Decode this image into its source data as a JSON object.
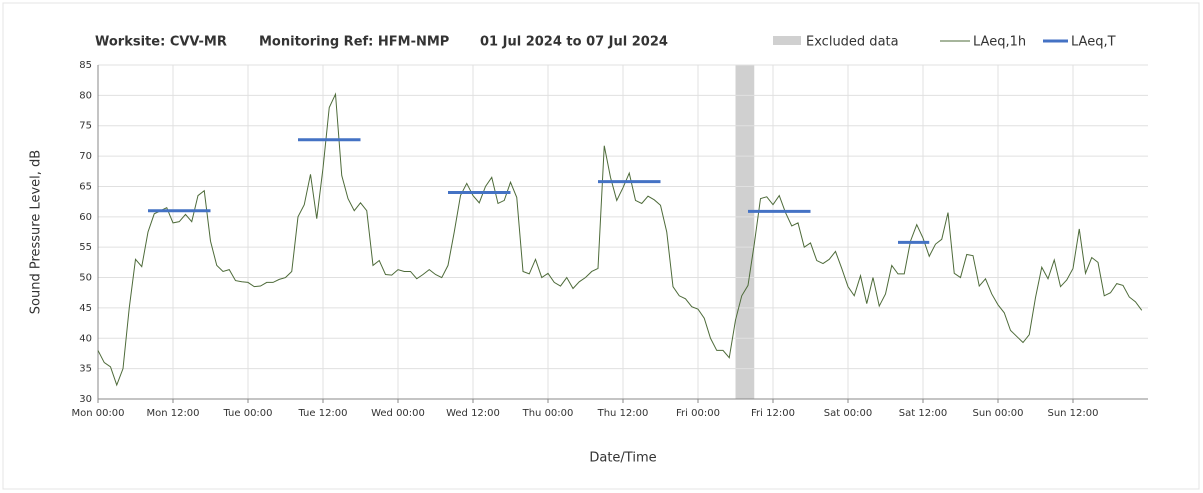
{
  "chart_data": {
    "type": "line",
    "header": [
      "Worksite: CVV-MR",
      "Monitoring Ref: HFM-NMP",
      "01 Jul 2024 to 07 Jul 2024"
    ],
    "xlabel": "Date/Time",
    "ylabel": "Sound Pressure Level, dB",
    "xlim": [
      0,
      168
    ],
    "ylim": [
      30,
      85
    ],
    "yticks": [
      30,
      35,
      40,
      45,
      50,
      55,
      60,
      65,
      70,
      75,
      80,
      85
    ],
    "xticks": [
      {
        "value": 0,
        "label": "Mon 00:00"
      },
      {
        "value": 12,
        "label": "Mon 12:00"
      },
      {
        "value": 24,
        "label": "Tue 00:00"
      },
      {
        "value": 36,
        "label": "Tue 12:00"
      },
      {
        "value": 48,
        "label": "Wed 00:00"
      },
      {
        "value": 60,
        "label": "Wed 12:00"
      },
      {
        "value": 72,
        "label": "Thu 00:00"
      },
      {
        "value": 84,
        "label": "Thu 12:00"
      },
      {
        "value": 96,
        "label": "Fri 00:00"
      },
      {
        "value": 108,
        "label": "Fri 12:00"
      },
      {
        "value": 120,
        "label": "Sat 00:00"
      },
      {
        "value": 132,
        "label": "Sat 12:00"
      },
      {
        "value": 144,
        "label": "Sun 00:00"
      },
      {
        "value": 156,
        "label": "Sun 12:00"
      }
    ],
    "grid": true,
    "excluded": {
      "name": "Excluded data",
      "color": "#d0d0d0",
      "x": [
        102,
        105
      ]
    },
    "series": [
      {
        "name": "LAeq,1h",
        "color": "#4e6b3a",
        "x": [
          0,
          1,
          2,
          3,
          4,
          5,
          6,
          7,
          8,
          9,
          10,
          11,
          12,
          13,
          14,
          15,
          16,
          17,
          18,
          19,
          20,
          21,
          22,
          23,
          24,
          25,
          26,
          27,
          28,
          29,
          30,
          31,
          32,
          33,
          34,
          35,
          36,
          37,
          38,
          39,
          40,
          41,
          42,
          43,
          44,
          45,
          46,
          47,
          48,
          49,
          50,
          51,
          52,
          53,
          54,
          55,
          56,
          57,
          58,
          59,
          60,
          61,
          62,
          63,
          64,
          65,
          66,
          67,
          68,
          69,
          70,
          71,
          72,
          73,
          74,
          75,
          76,
          77,
          78,
          79,
          80,
          81,
          82,
          83,
          84,
          85,
          86,
          87,
          88,
          89,
          90,
          91,
          92,
          93,
          94,
          95,
          96,
          97,
          98,
          99,
          100,
          101,
          102,
          103,
          104,
          105,
          106,
          107,
          108,
          109,
          110,
          111,
          112,
          113,
          114,
          115,
          116,
          117,
          118,
          119,
          120,
          121,
          122,
          123,
          124,
          125,
          126,
          127,
          128,
          129,
          130,
          131,
          132,
          133,
          134,
          135,
          136,
          137,
          138,
          139,
          140,
          141,
          142,
          143,
          144,
          145,
          146,
          147,
          148,
          149,
          150,
          151,
          152,
          153,
          154,
          155,
          156,
          157,
          158,
          159,
          160,
          161,
          162,
          163,
          164,
          165,
          166,
          167
        ],
        "values": [
          38,
          36,
          35.3,
          32.3,
          35,
          45,
          53,
          51.8,
          57.5,
          60.5,
          61,
          61.5,
          59,
          59.2,
          60.4,
          59.2,
          63.5,
          64.3,
          56,
          52,
          51,
          51.3,
          49.5,
          49.3,
          49.2,
          48.5,
          48.6,
          49.2,
          49.2,
          49.7,
          50,
          51,
          60,
          62,
          67,
          59.7,
          68,
          78,
          80.2,
          66.8,
          63,
          61,
          62.3,
          61,
          52,
          52.8,
          50.5,
          50.4,
          51.3,
          51,
          51,
          49.8,
          50.5,
          51.3,
          50.5,
          50,
          52,
          57.5,
          63.5,
          65.5,
          63.5,
          62.3,
          65,
          66.5,
          62.2,
          62.7,
          65.7,
          63.2,
          51,
          50.6,
          53,
          50,
          50.7,
          49.2,
          48.6,
          50,
          48.2,
          49.3,
          50,
          51,
          51.5,
          71.7,
          66.5,
          62.7,
          64.8,
          67.2,
          62.7,
          62.2,
          63.4,
          62.8,
          61.9,
          57.5,
          48.5,
          47,
          46.5,
          45.2,
          44.8,
          43.3,
          40,
          38,
          38,
          36.8,
          43,
          47,
          48.7,
          55.5,
          63,
          63.3,
          62,
          63.5,
          60.7,
          58.5,
          59,
          55,
          55.7,
          52.8,
          52.3,
          53,
          54.3,
          51.5,
          48.5,
          47,
          50.3,
          45.7,
          50,
          45.3,
          47.3,
          52,
          50.6,
          50.6,
          56,
          58.7,
          56.5,
          53.5,
          55.5,
          56.3,
          60.7,
          50.7,
          50,
          53.8,
          53.6,
          48.6,
          49.8,
          47.3,
          45.5,
          44.2,
          41.3,
          40.3,
          39.3,
          40.6,
          46.7,
          51.7,
          49.8,
          52.9,
          48.5,
          49.6,
          51.5,
          58,
          50.7,
          53.3,
          52.5,
          47,
          47.5,
          49,
          48.7,
          46.8,
          46,
          44.6
        ]
      },
      {
        "name": "LAeq,T",
        "color": "#4472c4",
        "segments": [
          {
            "x": [
              8,
              18
            ],
            "value": 61
          },
          {
            "x": [
              32,
              42
            ],
            "value": 72.7
          },
          {
            "x": [
              56,
              66
            ],
            "value": 64
          },
          {
            "x": [
              80,
              90
            ],
            "value": 65.8
          },
          {
            "x": [
              104,
              114
            ],
            "value": 60.9
          },
          {
            "x": [
              128,
              133
            ],
            "value": 55.8
          }
        ]
      }
    ]
  }
}
